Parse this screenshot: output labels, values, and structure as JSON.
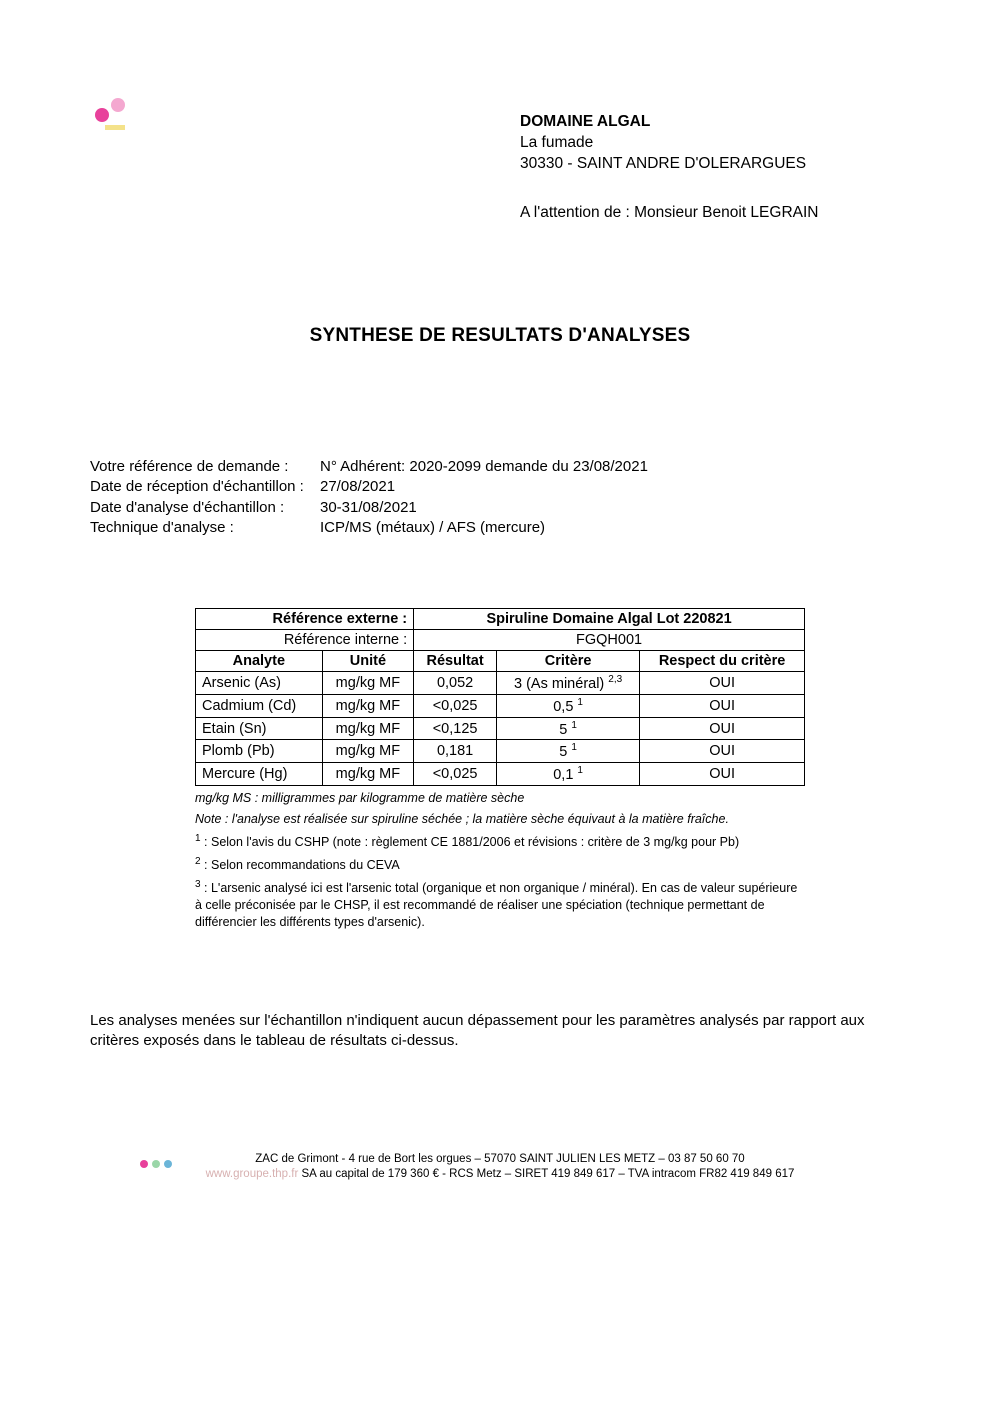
{
  "recipient": {
    "company": "DOMAINE ALGAL",
    "addr1": "La fumade",
    "addr2": "30330 - SAINT ANDRE D'OLERARGUES",
    "attention": "A l'attention de : Monsieur Benoit LEGRAIN"
  },
  "title": "SYNTHESE DE RESULTATS D'ANALYSES",
  "meta": {
    "ref_label": "Votre référence de demande :",
    "ref_value": "N° Adhérent: 2020-2099 demande du 23/08/2021",
    "recv_label": "Date de réception d'échantillon :",
    "recv_value": "27/08/2021",
    "ana_label": "Date d'analyse d'échantillon :",
    "ana_value": "30-31/08/2021",
    "tech_label": "Technique d'analyse :",
    "tech_value": "ICP/MS (métaux) / AFS (mercure)"
  },
  "table": {
    "ref_ext_label": "Référence externe :",
    "ref_ext_value": "Spiruline Domaine Algal Lot 220821",
    "ref_int_label": "Référence interne :",
    "ref_int_value": "FGQH001",
    "col_analyte": "Analyte",
    "col_unit": "Unité",
    "col_result": "Résultat",
    "col_critere": "Critère",
    "col_respect": "Respect du critère",
    "rows": [
      {
        "analyte": "Arsenic (As)",
        "unit": "mg/kg MF",
        "result": "0,052",
        "critere": "3 (As minéral)",
        "sup": "2,3",
        "respect": "OUI"
      },
      {
        "analyte": "Cadmium (Cd)",
        "unit": "mg/kg MF",
        "result": "<0,025",
        "critere": "0,5",
        "sup": "1",
        "respect": "OUI"
      },
      {
        "analyte": "Etain (Sn)",
        "unit": "mg/kg MF",
        "result": "<0,125",
        "critere": "5",
        "sup": "1",
        "respect": "OUI"
      },
      {
        "analyte": "Plomb (Pb)",
        "unit": "mg/kg MF",
        "result": "0,181",
        "critere": "5",
        "sup": "1",
        "respect": "OUI"
      },
      {
        "analyte": "Mercure (Hg)",
        "unit": "mg/kg MF",
        "result": "<0,025",
        "critere": "0,1",
        "sup": "1",
        "respect": "OUI"
      }
    ]
  },
  "notes": {
    "abbr": "mg/kg MS : milligrammes par kilogramme de matière sèche",
    "note": "Note : l'analyse est réalisée sur spiruline séchée ; la matière sèche équivaut à la matière fraîche.",
    "n1": " : Selon l'avis du CSHP (note : règlement CE 1881/2006 et révisions : critère de 3 mg/kg pour Pb)",
    "n2": " : Selon recommandations du CEVA",
    "n3": " : L'arsenic analysé ici est l'arsenic total (organique et non organique / minéral). En cas de valeur supérieure à celle préconisée par le CHSP, il est recommandé de réaliser une spéciation (technique permettant de différencier les différents types d'arsenic)."
  },
  "conclusion": "Les analyses menées sur l'échantillon n'indiquent aucun dépassement pour les paramètres analysés par rapport aux critères exposés dans le tableau de résultats ci-dessus.",
  "footer": {
    "line1": "ZAC de Grimont - 4 rue de Bort les orgues – 57070 SAINT JULIEN LES METZ – 03 87 50 60 70",
    "link": "www.groupe.thp.fr",
    "line2": " SA au capital de 179 360 € - RCS Metz – SIRET 419 849 617 – TVA intracom FR82 419 849 617"
  }
}
